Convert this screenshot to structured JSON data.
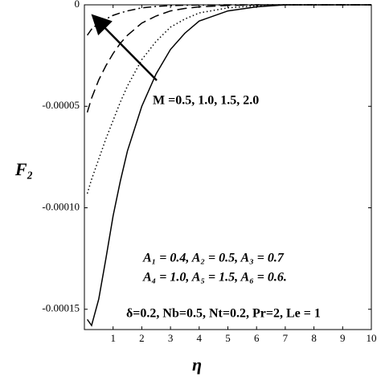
{
  "chart_data": {
    "type": "line",
    "x_label": "η",
    "y_label": "F₂",
    "annotations": [
      "M =0.5, 1.0, 1.5, 2.0",
      "A₁ = 0.4, A₂ = 0.5, A₃ = 0.7",
      "A₄ = 1.0, A₅ = 1.5, A₆ = 0.6.",
      "δ=0.2, Nb=0.5, Nt=0.2, Pr=2, Le = 1"
    ],
    "x": [
      0.1,
      0.25,
      0.5,
      0.75,
      1,
      1.25,
      1.5,
      2,
      2.5,
      3,
      3.5,
      4,
      5,
      6,
      7,
      8,
      9,
      10
    ],
    "series": [
      {
        "color": "#000000",
        "dash": "solid",
        "values": [
          -0.000155,
          -0.000158,
          -0.000145,
          -0.000125,
          -0.000104,
          -8.7e-05,
          -7.2e-05,
          -5e-05,
          -3.4e-05,
          -2.2e-05,
          -1.4e-05,
          -8e-06,
          -3e-06,
          -1e-06,
          0,
          0,
          0,
          0
        ]
      },
      {
        "color": "#000000",
        "dash": "dotted",
        "values": [
          -9.3e-05,
          -8.6e-05,
          -7.6e-05,
          -6.6e-05,
          -5.7e-05,
          -4.8e-05,
          -4e-05,
          -2.7e-05,
          -1.8e-05,
          -1.1e-05,
          -7e-06,
          -4e-06,
          -1.5e-06,
          -5e-07,
          0,
          0,
          0,
          0
        ]
      },
      {
        "color": "#000000",
        "dash": "dashed",
        "values": [
          -5.3e-05,
          -4.6e-05,
          -3.7e-05,
          -3e-05,
          -2.4e-05,
          -1.9e-05,
          -1.5e-05,
          -9e-06,
          -5.5e-06,
          -3e-06,
          -1.8e-06,
          -1e-06,
          -3e-07,
          0,
          0,
          0,
          0,
          0
        ]
      },
      {
        "color": "#000000",
        "dash": "dashdot",
        "values": [
          -1.5e-05,
          -1.2e-05,
          -9e-06,
          -7e-06,
          -5.2e-06,
          -4e-06,
          -3e-06,
          -1.5e-06,
          -8e-07,
          -4e-07,
          -2e-07,
          -1e-07,
          0,
          0,
          0,
          0,
          0,
          0
        ]
      }
    ],
    "xlim": [
      0,
      10
    ],
    "xticks": [
      1,
      2,
      3,
      4,
      5,
      6,
      7,
      8,
      9,
      10
    ],
    "ylim": [
      -0.00016,
      0
    ],
    "yticks": [
      {
        "value": -0.00015,
        "label": "-0.00015"
      },
      {
        "value": -0.0001,
        "label": "-0.00010"
      },
      {
        "value": -5e-05,
        "label": "-0.00005"
      },
      0
    ]
  }
}
